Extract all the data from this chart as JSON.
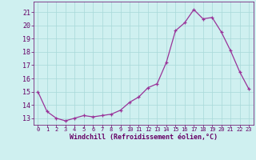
{
  "x": [
    0,
    1,
    2,
    3,
    4,
    5,
    6,
    7,
    8,
    9,
    10,
    11,
    12,
    13,
    14,
    15,
    16,
    17,
    18,
    19,
    20,
    21,
    22,
    23
  ],
  "y": [
    15.0,
    13.5,
    13.0,
    12.8,
    13.0,
    13.2,
    13.1,
    13.2,
    13.3,
    13.6,
    14.2,
    14.6,
    15.3,
    15.6,
    17.2,
    19.6,
    20.2,
    21.2,
    20.5,
    20.6,
    19.5,
    18.1,
    16.5,
    15.2
  ],
  "bg_color": "#cff0f0",
  "grid_color": "#a8d8d8",
  "line_color": "#993399",
  "marker": "+",
  "xlabel": "Windchill (Refroidissement éolien,°C)",
  "xlabel_color": "#660066",
  "tick_color": "#660066",
  "spine_color": "#660066",
  "ylim": [
    12.5,
    21.8
  ],
  "xlim": [
    -0.5,
    23.5
  ],
  "yticks": [
    13,
    14,
    15,
    16,
    17,
    18,
    19,
    20,
    21
  ],
  "xticks": [
    0,
    1,
    2,
    3,
    4,
    5,
    6,
    7,
    8,
    9,
    10,
    11,
    12,
    13,
    14,
    15,
    16,
    17,
    18,
    19,
    20,
    21,
    22,
    23
  ],
  "xtick_labels": [
    "0",
    "1",
    "2",
    "3",
    "4",
    "5",
    "6",
    "7",
    "8",
    "9",
    "10",
    "11",
    "12",
    "13",
    "14",
    "15",
    "16",
    "17",
    "18",
    "19",
    "20",
    "21",
    "22",
    "23"
  ]
}
